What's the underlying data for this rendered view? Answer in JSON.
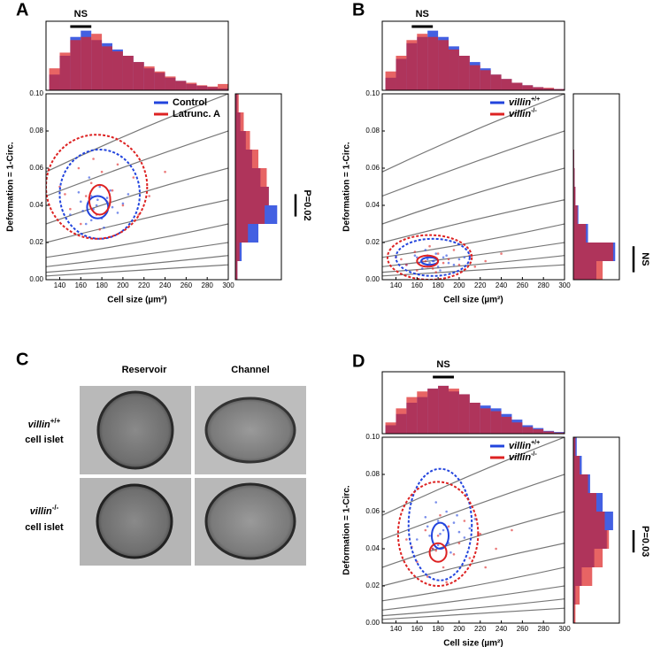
{
  "chart_data": [
    {
      "type": "scatter",
      "panel_label": "A",
      "xlabel": "Cell size (µm²)",
      "ylabel": "Deformation = 1-Circ.",
      "xlim": [
        127,
        300
      ],
      "xticks": [
        140,
        160,
        180,
        200,
        220,
        240,
        260,
        280,
        300
      ],
      "ylim": [
        0,
        0.1
      ],
      "yticks": [
        {
          "value": 0,
          "label": "0.00"
        },
        0.02,
        0.04,
        0.06,
        0.08,
        {
          "value": 0.1,
          "label": "0.10"
        }
      ],
      "legend": "upper right",
      "hist_lim": [
        0,
        1.1
      ],
      "top_bins": [
        130,
        140,
        150,
        160,
        170,
        180,
        190,
        200,
        210,
        220,
        230,
        240,
        250,
        260,
        270,
        280,
        290,
        300
      ],
      "side_bins": [
        0,
        0.01,
        0.02,
        0.03,
        0.04,
        0.05,
        0.06,
        0.07,
        0.08,
        0.09,
        0.1
      ],
      "isoline_x": [
        127,
        213,
        300
      ],
      "isolines_y": [
        [
          0.058,
          0.08,
          0.1
        ],
        [
          0.045,
          0.063,
          0.08
        ],
        [
          0.03,
          0.046,
          0.06
        ],
        [
          0.02,
          0.032,
          0.043
        ],
        [
          0.012,
          0.02,
          0.03
        ],
        [
          0.007,
          0.013,
          0.02
        ],
        [
          0.004,
          0.008,
          0.013
        ],
        [
          0.002,
          0.005,
          0.008
        ]
      ],
      "top_stat": {
        "label": "NS",
        "from": 150,
        "to": 170
      },
      "side_stat": {
        "label": "P=0.02",
        "from": 0.034,
        "to": 0.046
      },
      "series": [
        {
          "name": "Control",
          "color": "#2244dd",
          "x": [
            150,
            160,
            165,
            170,
            172,
            175,
            178,
            180,
            185,
            190,
            195,
            200,
            168,
            158,
            182,
            176,
            188,
            162,
            170,
            205
          ],
          "y": [
            0.035,
            0.042,
            0.03,
            0.045,
            0.038,
            0.04,
            0.05,
            0.033,
            0.044,
            0.039,
            0.036,
            0.041,
            0.055,
            0.047,
            0.028,
            0.043,
            0.048,
            0.037,
            0.032,
            0.046
          ],
          "top_counts": [
            0.25,
            0.55,
            0.85,
            0.95,
            0.8,
            0.75,
            0.65,
            0.55,
            0.45,
            0.35,
            0.28,
            0.2,
            0.15,
            0.1,
            0.07,
            0.05,
            0.03
          ],
          "side_counts": [
            0.05,
            0.15,
            0.55,
            1.0,
            0.8,
            0.6,
            0.4,
            0.25,
            0.12,
            0.05
          ],
          "contours": [
            {
              "cx": 176,
              "cy": 0.039,
              "rx": 10,
              "ry": 0.006,
              "dashed": false
            },
            {
              "cx": 178,
              "cy": 0.046,
              "rx": 38,
              "ry": 0.024,
              "dashed": true
            }
          ]
        },
        {
          "name": "Latrunc. A",
          "color": "#dd2222",
          "x": [
            140,
            150,
            158,
            165,
            170,
            175,
            180,
            185,
            190,
            200,
            210,
            225,
            160,
            172,
            195,
            168,
            178,
            145,
            215,
            240
          ],
          "y": [
            0.05,
            0.038,
            0.06,
            0.045,
            0.052,
            0.035,
            0.058,
            0.042,
            0.048,
            0.04,
            0.055,
            0.045,
            0.03,
            0.065,
            0.062,
            0.044,
            0.027,
            0.046,
            0.035,
            0.058
          ],
          "top_counts": [
            0.35,
            0.6,
            0.8,
            0.85,
            0.9,
            0.7,
            0.62,
            0.55,
            0.45,
            0.38,
            0.3,
            0.22,
            0.15,
            0.12,
            0.08,
            0.06,
            0.1
          ],
          "side_counts": [
            0.05,
            0.1,
            0.3,
            0.7,
            0.8,
            0.75,
            0.55,
            0.35,
            0.2,
            0.08
          ],
          "contours": [
            {
              "cx": 178,
              "cy": 0.043,
              "rx": 10,
              "ry": 0.008,
              "dashed": false
            },
            {
              "cx": 175,
              "cy": 0.05,
              "rx": 48,
              "ry": 0.028,
              "dashed": true
            }
          ]
        }
      ]
    },
    {
      "type": "scatter",
      "panel_label": "B",
      "xlabel": "Cell size (µm²)",
      "ylabel": "Deformation = 1-Circ.",
      "xlim": [
        127,
        300
      ],
      "xticks": [
        140,
        160,
        180,
        200,
        220,
        240,
        260,
        280,
        300
      ],
      "ylim": [
        0,
        0.1
      ],
      "yticks": [
        {
          "value": 0,
          "label": "0.00"
        },
        0.02,
        0.04,
        0.06,
        0.08,
        {
          "value": 0.1,
          "label": "0.10"
        }
      ],
      "legend": "upper right",
      "hist_lim": [
        0,
        1.1
      ],
      "top_bins": [
        130,
        140,
        150,
        160,
        170,
        180,
        190,
        200,
        210,
        220,
        230,
        240,
        250,
        260,
        270,
        280,
        290,
        300
      ],
      "side_bins": [
        0,
        0.01,
        0.02,
        0.03,
        0.04,
        0.05,
        0.06,
        0.07,
        0.08,
        0.09,
        0.1
      ],
      "isoline_x": [
        127,
        213,
        300
      ],
      "isolines_y": [
        [
          0.058,
          0.08,
          0.1
        ],
        [
          0.045,
          0.063,
          0.08
        ],
        [
          0.03,
          0.046,
          0.06
        ],
        [
          0.02,
          0.032,
          0.043
        ],
        [
          0.012,
          0.02,
          0.03
        ],
        [
          0.007,
          0.013,
          0.02
        ],
        [
          0.004,
          0.008,
          0.013
        ],
        [
          0.002,
          0.005,
          0.008
        ]
      ],
      "top_stat": {
        "label": "NS",
        "from": 155,
        "to": 175
      },
      "side_stat": {
        "label": "NS",
        "from": 0.004,
        "to": 0.018
      },
      "series": [
        {
          "name": "villin",
          "name_sup": "+/+",
          "color": "#2244dd",
          "x": [
            150,
            160,
            165,
            170,
            172,
            175,
            178,
            180,
            185,
            190,
            195,
            200,
            168,
            158,
            182,
            176,
            188,
            162,
            170,
            205
          ],
          "y": [
            0.008,
            0.012,
            0.006,
            0.011,
            0.009,
            0.01,
            0.014,
            0.007,
            0.012,
            0.009,
            0.008,
            0.011,
            0.016,
            0.013,
            0.005,
            0.01,
            0.013,
            0.009,
            0.007,
            0.012
          ],
          "top_counts": [
            0.2,
            0.5,
            0.75,
            0.85,
            0.95,
            0.85,
            0.7,
            0.55,
            0.45,
            0.35,
            0.25,
            0.18,
            0.12,
            0.08,
            0.05,
            0.03,
            0.02
          ],
          "side_counts": [
            0.55,
            1.0,
            0.35,
            0.12,
            0.05,
            0.03,
            0.02,
            0.01,
            0.01,
            0.01
          ],
          "contours": [
            {
              "cx": 172,
              "cy": 0.01,
              "rx": 8,
              "ry": 0.002,
              "dashed": false
            },
            {
              "cx": 175,
              "cy": 0.012,
              "rx": 35,
              "ry": 0.01,
              "dashed": true
            }
          ]
        },
        {
          "name": "villin",
          "name_sup": "-/-",
          "color": "#dd2222",
          "x": [
            140,
            150,
            158,
            165,
            170,
            175,
            180,
            185,
            190,
            200,
            210,
            225,
            160,
            172,
            195,
            168,
            178,
            145,
            215,
            240
          ],
          "y": [
            0.012,
            0.008,
            0.015,
            0.01,
            0.013,
            0.006,
            0.014,
            0.009,
            0.011,
            0.008,
            0.013,
            0.01,
            0.005,
            0.018,
            0.016,
            0.01,
            0.004,
            0.011,
            0.007,
            0.014
          ],
          "top_counts": [
            0.3,
            0.55,
            0.8,
            0.9,
            0.85,
            0.8,
            0.65,
            0.55,
            0.4,
            0.32,
            0.25,
            0.18,
            0.12,
            0.08,
            0.05,
            0.04,
            0.02
          ],
          "side_counts": [
            0.7,
            0.95,
            0.3,
            0.1,
            0.05,
            0.03,
            0.02,
            0.01,
            0.01,
            0.01
          ],
          "contours": [
            {
              "cx": 170,
              "cy": 0.01,
              "rx": 10,
              "ry": 0.003,
              "dashed": false
            },
            {
              "cx": 172,
              "cy": 0.012,
              "rx": 40,
              "ry": 0.012,
              "dashed": true
            }
          ]
        }
      ]
    },
    {
      "type": "scatter",
      "panel_label": "D",
      "xlabel": "Cell size (µm²)",
      "ylabel": "Deformation = 1-Circ.",
      "xlim": [
        127,
        300
      ],
      "xticks": [
        140,
        160,
        180,
        200,
        220,
        240,
        260,
        280,
        300
      ],
      "ylim": [
        0,
        0.1
      ],
      "yticks": [
        {
          "value": 0,
          "label": "0.00"
        },
        0.02,
        0.04,
        0.06,
        0.08,
        {
          "value": 0.1,
          "label": "0.10"
        }
      ],
      "legend": "upper right",
      "hist_lim": [
        0,
        1.1
      ],
      "top_bins": [
        130,
        140,
        150,
        160,
        170,
        180,
        190,
        200,
        210,
        220,
        230,
        240,
        250,
        260,
        270,
        280,
        290,
        300
      ],
      "side_bins": [
        0,
        0.01,
        0.02,
        0.03,
        0.04,
        0.05,
        0.06,
        0.07,
        0.08,
        0.09,
        0.1
      ],
      "isoline_x": [
        127,
        213,
        300
      ],
      "isolines_y": [
        [
          0.058,
          0.08,
          0.1
        ],
        [
          0.045,
          0.063,
          0.08
        ],
        [
          0.03,
          0.046,
          0.06
        ],
        [
          0.02,
          0.032,
          0.043
        ],
        [
          0.012,
          0.02,
          0.03
        ],
        [
          0.007,
          0.013,
          0.02
        ],
        [
          0.004,
          0.008,
          0.013
        ],
        [
          0.002,
          0.005,
          0.008
        ]
      ],
      "top_stat": {
        "label": "NS",
        "from": 175,
        "to": 195
      },
      "side_stat": {
        "label": "P=0.03",
        "from": 0.038,
        "to": 0.05
      },
      "series": [
        {
          "name": "villin",
          "name_sup": "+/+",
          "color": "#2244dd",
          "x": [
            160,
            170,
            175,
            180,
            182,
            185,
            188,
            190,
            195,
            200,
            205,
            210,
            178,
            168,
            192,
            186,
            198,
            172,
            180,
            215
          ],
          "y": [
            0.045,
            0.052,
            0.04,
            0.055,
            0.048,
            0.05,
            0.06,
            0.043,
            0.054,
            0.049,
            0.046,
            0.051,
            0.065,
            0.057,
            0.038,
            0.053,
            0.058,
            0.047,
            0.042,
            0.056
          ],
          "top_counts": [
            0.15,
            0.35,
            0.55,
            0.65,
            0.8,
            0.85,
            0.75,
            0.7,
            0.55,
            0.5,
            0.45,
            0.35,
            0.25,
            0.15,
            0.1,
            0.05,
            0.03
          ],
          "side_counts": [
            0.02,
            0.05,
            0.2,
            0.5,
            0.8,
            0.95,
            0.7,
            0.4,
            0.2,
            0.08
          ],
          "contours": [
            {
              "cx": 182,
              "cy": 0.047,
              "rx": 8,
              "ry": 0.007,
              "dashed": false
            },
            {
              "cx": 182,
              "cy": 0.053,
              "rx": 30,
              "ry": 0.03,
              "dashed": true
            }
          ]
        },
        {
          "name": "villin",
          "name_sup": "-/-",
          "color": "#dd2222",
          "x": [
            150,
            160,
            168,
            175,
            180,
            185,
            190,
            195,
            200,
            210,
            220,
            235,
            170,
            182,
            205,
            178,
            188,
            155,
            225,
            250
          ],
          "y": [
            0.045,
            0.033,
            0.05,
            0.04,
            0.047,
            0.03,
            0.052,
            0.037,
            0.043,
            0.035,
            0.048,
            0.04,
            0.025,
            0.058,
            0.055,
            0.039,
            0.022,
            0.041,
            0.03,
            0.05
          ],
          "top_counts": [
            0.2,
            0.45,
            0.65,
            0.75,
            0.8,
            0.85,
            0.8,
            0.7,
            0.55,
            0.45,
            0.4,
            0.3,
            0.2,
            0.12,
            0.08,
            0.04,
            0.02
          ],
          "side_counts": [
            0.05,
            0.15,
            0.45,
            0.7,
            0.85,
            0.75,
            0.55,
            0.35,
            0.15,
            0.05
          ],
          "contours": [
            {
              "cx": 180,
              "cy": 0.038,
              "rx": 8,
              "ry": 0.005,
              "dashed": false
            },
            {
              "cx": 180,
              "cy": 0.048,
              "rx": 38,
              "ry": 0.028,
              "dashed": true
            }
          ]
        }
      ]
    }
  ],
  "panel_c": {
    "label": "C",
    "columns": [
      "Reservoir",
      "Channel"
    ],
    "rows": [
      {
        "name": "villin",
        "sup": "+/+",
        "line2": "cell islet"
      },
      {
        "name": "villin",
        "sup": "-/-",
        "line2": "cell islet"
      }
    ]
  }
}
